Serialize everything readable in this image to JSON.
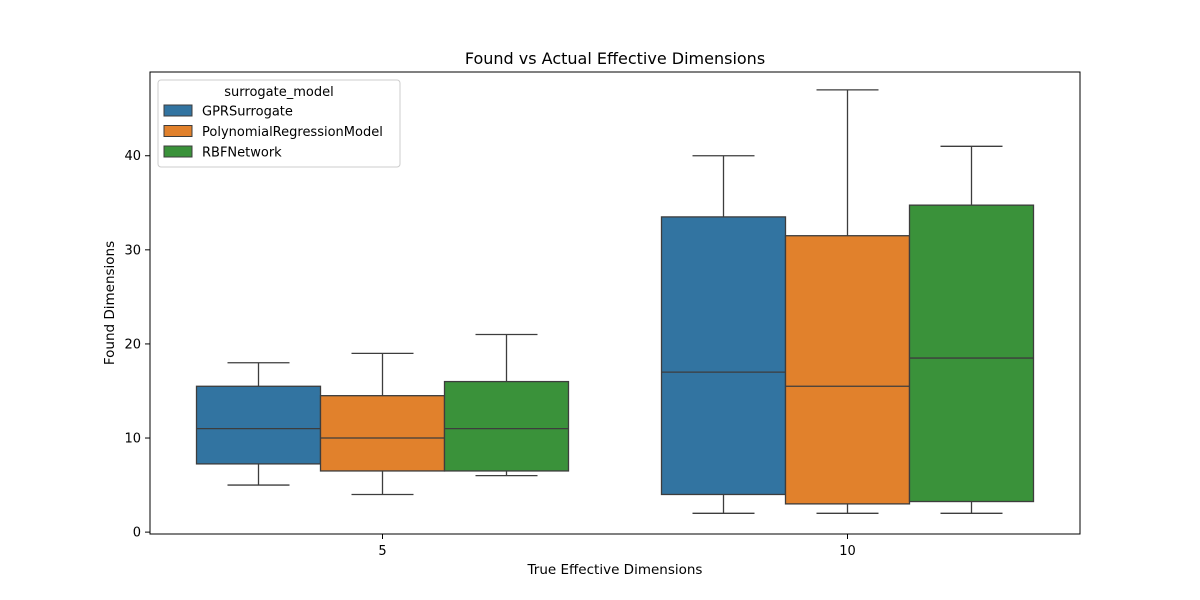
{
  "chart_data": {
    "type": "box",
    "title": "Found vs Actual Effective Dimensions",
    "xlabel": "True Effective Dimensions",
    "ylabel": "Found Dimensions",
    "categories": [
      "5",
      "10"
    ],
    "ylim": [
      -0.2,
      48.9
    ],
    "yticks": [
      0,
      10,
      20,
      30,
      40
    ],
    "grid": false,
    "legend": {
      "title": "surrogate_model",
      "placement": "top-left"
    },
    "series": [
      {
        "name": "GPRSurrogate",
        "color": "#3274a1",
        "boxes": [
          {
            "category": "5",
            "whisker_low": 5,
            "q1": 7.25,
            "median": 11,
            "q3": 15.5,
            "whisker_high": 18
          },
          {
            "category": "10",
            "whisker_low": 2,
            "q1": 4,
            "median": 17,
            "q3": 33.5,
            "whisker_high": 40
          }
        ]
      },
      {
        "name": "PolynomialRegressionModel",
        "color": "#e1812c",
        "boxes": [
          {
            "category": "5",
            "whisker_low": 4,
            "q1": 6.5,
            "median": 10,
            "q3": 14.5,
            "whisker_high": 19
          },
          {
            "category": "10",
            "whisker_low": 2,
            "q1": 3,
            "median": 15.5,
            "q3": 31.5,
            "whisker_high": 47
          }
        ]
      },
      {
        "name": "RBFNetwork",
        "color": "#3a923a",
        "boxes": [
          {
            "category": "5",
            "whisker_low": 6,
            "q1": 6.5,
            "median": 11,
            "q3": 16,
            "whisker_high": 21
          },
          {
            "category": "10",
            "whisker_low": 2,
            "q1": 3.25,
            "median": 18.5,
            "q3": 34.75,
            "whisker_high": 41
          }
        ]
      }
    ]
  }
}
